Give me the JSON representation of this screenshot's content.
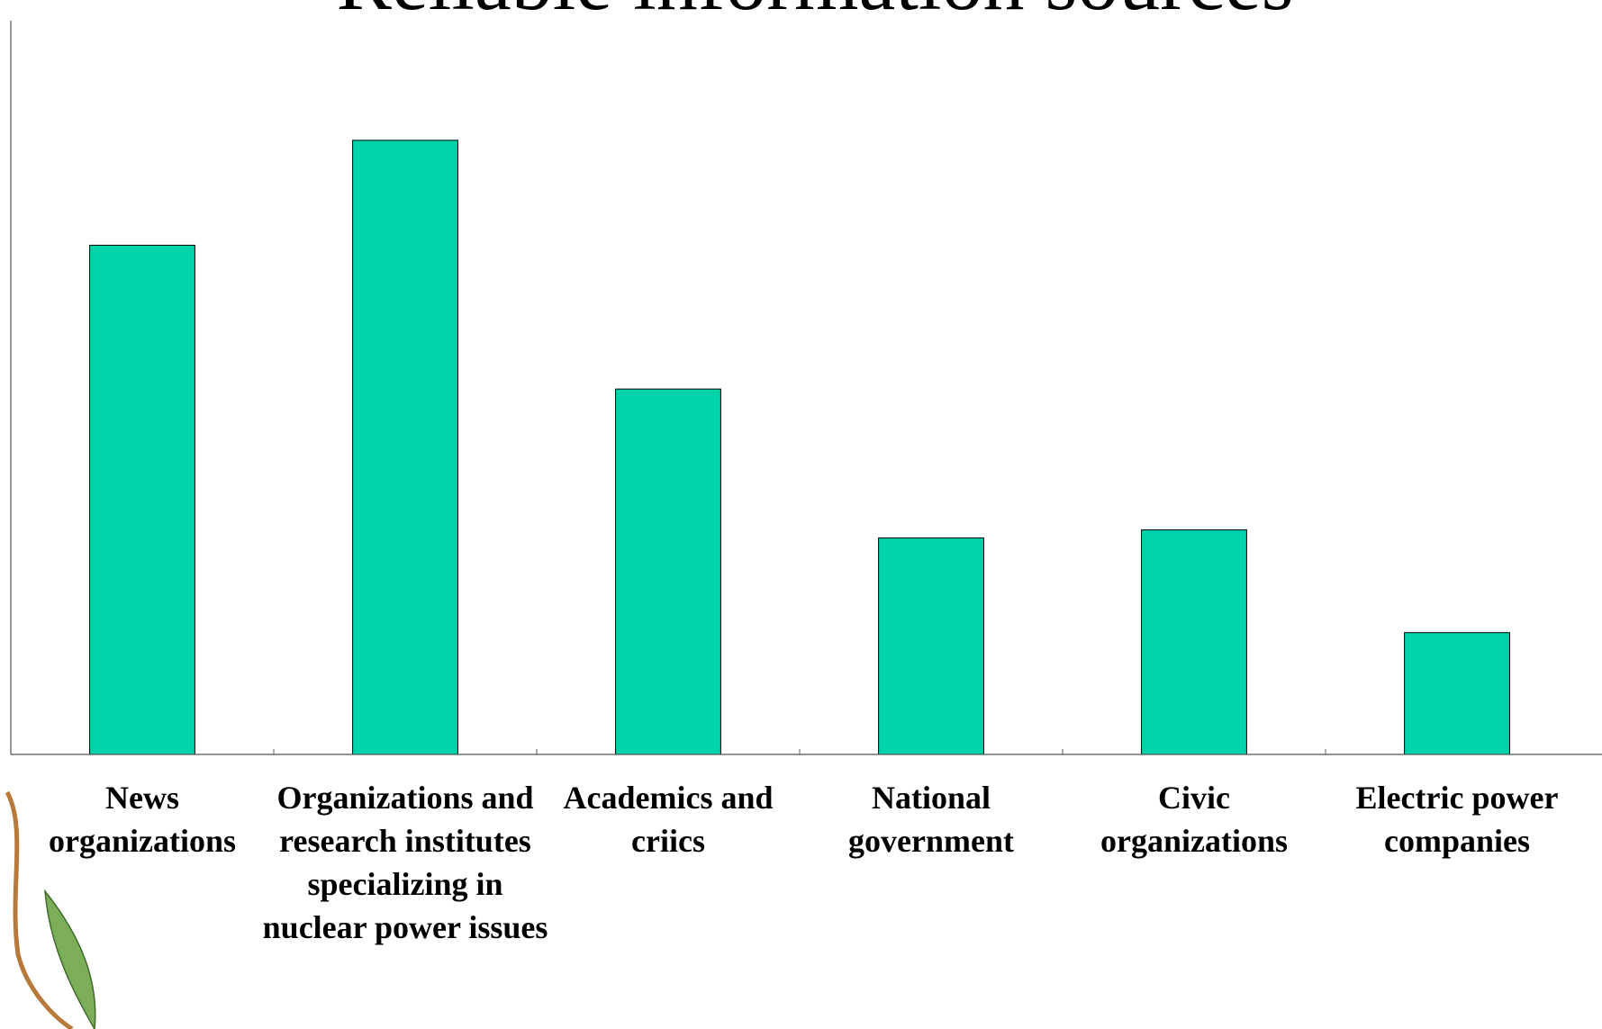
{
  "chart_data": {
    "type": "bar",
    "title": "Reliable information sources",
    "categories": [
      "News organizations",
      "Organizations and research institutes specializing in nuclear power issues",
      "Academics and criics",
      "National government",
      "Civic organizations",
      "Electric power companies"
    ],
    "values": [
      69.4,
      83.7,
      49.8,
      29.5,
      30.6,
      16.6
    ],
    "color": "#00d2aa",
    "ylim": [
      0,
      100
    ]
  }
}
